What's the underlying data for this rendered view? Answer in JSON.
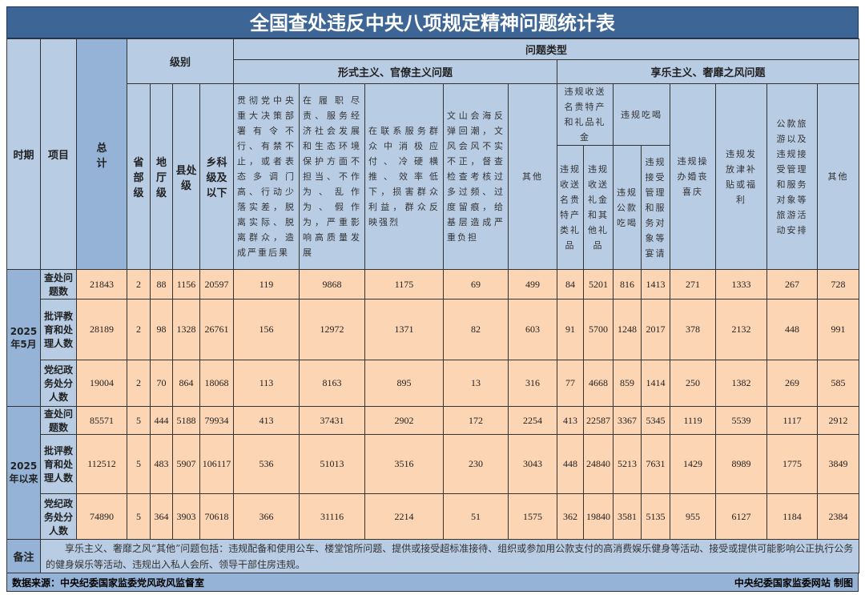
{
  "title": "全国查处违反中央八项规定精神问题统计表",
  "headers": {
    "period": "时期",
    "item": "项目",
    "total": "总计",
    "level": "级别",
    "problem_type": "问题类型",
    "formalism": "形式主义、官僚主义问题",
    "hedonism": "享乐主义、奢靡之风问题",
    "levels": [
      "省部级",
      "地厅级",
      "县处级",
      "乡科级及以下"
    ],
    "formalism_cols": [
      "贯彻党中央重大决策部署有令不行、有禁不止，或者表态多调门高、行动少落实差，脱离实际、脱离群众，造成严重后果",
      "在履职尽责、服务经济社会发展和生态环境保护方面不担当、不作为、乱作为、假作为，严重影响高质量发展",
      "在联系服务群众中消极应付、冷硬横推、效率低下，损害群众利益，群众反映强烈",
      "文山会海反弹回潮，文风会风不实不正，督查检查考核过多过频、过度留痕，给基层造成严重负担",
      "其他"
    ],
    "gift_group": "违规收送名贵特产和礼品礼金",
    "gift_sub": [
      "违规收送名贵特产类礼品",
      "违规收送礼金和其他礼品"
    ],
    "dining_group": "违规吃喝",
    "dining_sub": [
      "违规公款吃喝",
      "违规接受管理和服务对象等宴请"
    ],
    "hedonism_cols": [
      "违规操办婚丧喜庆",
      "违规发放津补贴或福利",
      "公款旅游以及违规接受管理和服务对象等旅游活动安排",
      "其他"
    ]
  },
  "periods": [
    {
      "label": "2025年5月",
      "rows": [
        {
          "item": "查处问题数",
          "values": [
            "21843",
            "2",
            "88",
            "1156",
            "20597",
            "119",
            "9868",
            "1175",
            "69",
            "499",
            "84",
            "5201",
            "816",
            "1413",
            "271",
            "1333",
            "267",
            "728"
          ]
        },
        {
          "item": "批评教育和处理人数",
          "values": [
            "28189",
            "2",
            "98",
            "1328",
            "26761",
            "156",
            "12972",
            "1371",
            "82",
            "603",
            "91",
            "5700",
            "1248",
            "2017",
            "378",
            "2132",
            "448",
            "991"
          ]
        },
        {
          "item": "党纪政务处分人数",
          "values": [
            "19004",
            "2",
            "70",
            "864",
            "18068",
            "113",
            "8163",
            "895",
            "13",
            "316",
            "77",
            "4668",
            "859",
            "1414",
            "250",
            "1382",
            "269",
            "585"
          ]
        }
      ]
    },
    {
      "label": "2025年以来",
      "rows": [
        {
          "item": "查处问题数",
          "values": [
            "85571",
            "5",
            "444",
            "5188",
            "79934",
            "413",
            "37431",
            "2902",
            "172",
            "2254",
            "413",
            "22587",
            "3367",
            "5345",
            "1119",
            "5539",
            "1117",
            "2912"
          ]
        },
        {
          "item": "批评教育和处理人数",
          "values": [
            "112512",
            "5",
            "483",
            "5907",
            "106117",
            "536",
            "51013",
            "3516",
            "230",
            "3043",
            "448",
            "24840",
            "5213",
            "7631",
            "1429",
            "8989",
            "1775",
            "3849"
          ]
        },
        {
          "item": "党纪政务处分人数",
          "values": [
            "74890",
            "5",
            "364",
            "3903",
            "70618",
            "366",
            "31116",
            "2214",
            "51",
            "1575",
            "362",
            "19840",
            "3581",
            "5135",
            "955",
            "6127",
            "1184",
            "2384"
          ]
        }
      ]
    }
  ],
  "note": {
    "label": "备注",
    "text": "享乐主义、奢靡之风“其他”问题包括：违规配备和使用公车、楼堂馆所问题、提供或接受超标准接待、组织或参加用公款支付的高消费娱乐健身等活动、接受或提供可能影响公正执行公务的健身娱乐等活动、违规出入私人会所、领导干部住房违规。"
  },
  "footer": {
    "source": "数据来源：中央纪委国家监委党风政风监督室",
    "credit": "中央纪委国家监委网站 制图"
  },
  "colors": {
    "title_bg": "#3d6596",
    "header_bg": "#b8cce4",
    "dark_header_bg": "#95b3d7",
    "data_bg": "#fcd5b4"
  }
}
